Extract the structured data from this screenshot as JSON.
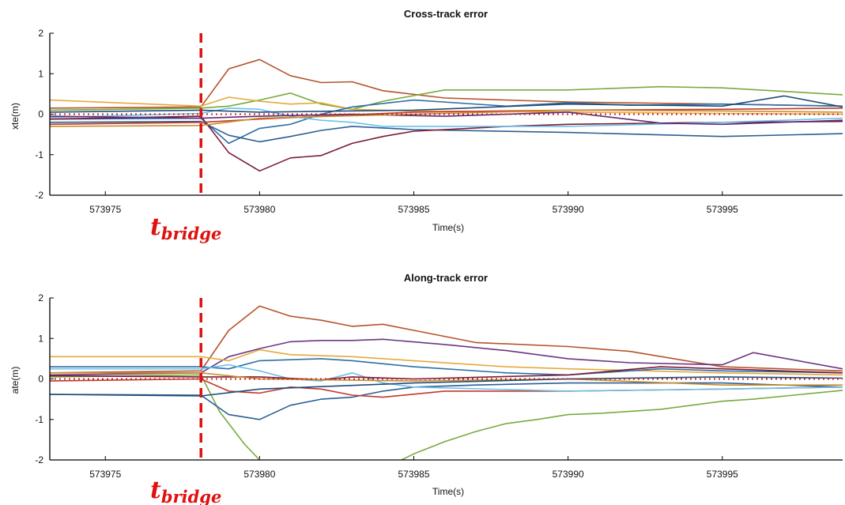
{
  "colors": {
    "marker": "#e01010",
    "reference": "#cc2222",
    "axis": "#000000"
  },
  "chart_data": [
    {
      "type": "line",
      "title": "Cross-track error",
      "xlabel": "Time(s)",
      "ylabel": "xte(m)",
      "xlim": [
        573973.2,
        573998.9
      ],
      "ylim": [
        -2,
        2
      ],
      "xticks": [
        573975,
        573980,
        573985,
        573990,
        573995
      ],
      "yticks": [
        -2,
        -1,
        0,
        1,
        2
      ],
      "grid": false,
      "legend": "none",
      "reference_line": {
        "y": 0,
        "style": "dotted"
      },
      "marker": {
        "x": 573978.1,
        "label_main": "t",
        "label_sub": "bridge",
        "style": "dashed"
      },
      "series": [
        {
          "color": "#b5532a",
          "x": [
            573973.2,
            573978.1,
            573979,
            573980,
            573981,
            573982,
            573983,
            573984,
            573986,
            573990,
            573995,
            573998.9
          ],
          "y": [
            0.15,
            0.18,
            1.12,
            1.35,
            0.95,
            0.78,
            0.8,
            0.58,
            0.4,
            0.3,
            0.25,
            0.2
          ]
        },
        {
          "color": "#77ab3e",
          "x": [
            573973.2,
            573978.1,
            573979,
            573980,
            573981,
            573982,
            573983,
            573984,
            573986,
            573990,
            573993,
            573995,
            573998.9
          ],
          "y": [
            0.1,
            0.15,
            0.2,
            0.35,
            0.52,
            0.25,
            0.12,
            0.32,
            0.6,
            0.6,
            0.68,
            0.65,
            0.48
          ]
        },
        {
          "color": "#e6a93c",
          "x": [
            573973.2,
            573978.1,
            573979,
            573980,
            573981,
            573982,
            573983,
            573985,
            573990,
            573995,
            573998.9
          ],
          "y": [
            0.35,
            0.2,
            0.42,
            0.32,
            0.25,
            0.28,
            0.12,
            0.08,
            0.05,
            0.02,
            0.0
          ]
        },
        {
          "color": "#2d6fa6",
          "x": [
            573973.2,
            573978.1,
            573979,
            573980,
            573981,
            573982,
            573983,
            573985,
            573988,
            573990,
            573992,
            573995,
            573998.9
          ],
          "y": [
            -0.12,
            -0.1,
            -0.72,
            -0.35,
            -0.25,
            0.0,
            0.18,
            0.35,
            0.2,
            0.28,
            0.22,
            0.25,
            0.2
          ]
        },
        {
          "color": "#2a5f94",
          "x": [
            573973.2,
            573978.1,
            573979,
            573980,
            573981,
            573982,
            573983,
            573985,
            573990,
            573995,
            573998.9
          ],
          "y": [
            -0.2,
            -0.18,
            -0.52,
            -0.68,
            -0.55,
            -0.4,
            -0.3,
            -0.38,
            -0.45,
            -0.55,
            -0.48
          ]
        },
        {
          "color": "#7a1c33",
          "x": [
            573973.2,
            573978.1,
            573979,
            573980,
            573981,
            573982,
            573983,
            573984,
            573985,
            573988,
            573990,
            573995,
            573998.9
          ],
          "y": [
            -0.12,
            -0.05,
            -0.95,
            -1.4,
            -1.08,
            -1.02,
            -0.72,
            -0.55,
            -0.42,
            -0.3,
            -0.25,
            -0.2,
            -0.18
          ]
        },
        {
          "color": "#6ec0e8",
          "x": [
            573973.2,
            573978.1,
            573979,
            573980,
            573981,
            573982,
            573983,
            573984,
            573990,
            573995,
            573998.9
          ],
          "y": [
            -0.08,
            0.02,
            0.15,
            0.12,
            -0.05,
            -0.15,
            -0.2,
            -0.3,
            -0.3,
            -0.2,
            -0.1
          ]
        },
        {
          "color": "#c0392b",
          "x": [
            573973.2,
            573978.1,
            573980,
            573982,
            573985,
            573990,
            573995,
            573998.9
          ],
          "y": [
            -0.25,
            -0.2,
            -0.12,
            -0.05,
            0.05,
            0.1,
            0.12,
            0.15
          ]
        },
        {
          "color": "#5c2a7a",
          "x": [
            573973.2,
            573978.1,
            573980,
            573983,
            573986,
            573990,
            573993,
            573995,
            573998.9
          ],
          "y": [
            -0.05,
            -0.1,
            -0.05,
            0.0,
            -0.05,
            0.05,
            -0.22,
            -0.25,
            -0.15
          ]
        },
        {
          "color": "#c98e2e",
          "x": [
            573973.2,
            573978.1,
            573980,
            573985,
            573990,
            573995,
            573998.9
          ],
          "y": [
            -0.3,
            -0.28,
            -0.1,
            0.0,
            0.1,
            0.08,
            0.05
          ]
        },
        {
          "color": "#1e4d78",
          "x": [
            573973.2,
            573978.1,
            573980,
            573985,
            573990,
            573995,
            573997,
            573998.9
          ],
          "y": [
            0.05,
            0.1,
            0.05,
            0.1,
            0.25,
            0.2,
            0.45,
            0.18
          ]
        }
      ]
    },
    {
      "type": "line",
      "title": "Along-track error",
      "xlabel": "Time(s)",
      "ylabel": "ate(m)",
      "xlim": [
        573973.2,
        573998.9
      ],
      "ylim": [
        -2,
        2
      ],
      "xticks": [
        573975,
        573980,
        573985,
        573990,
        573995
      ],
      "yticks": [
        -2,
        -1,
        0,
        1,
        2
      ],
      "grid": false,
      "legend": "none",
      "reference_line": {
        "y": 0,
        "style": "dotted"
      },
      "marker": {
        "x": 573978.1,
        "label_main": "t",
        "label_sub": "bridge",
        "style": "dashed"
      },
      "series": [
        {
          "color": "#b5532a",
          "x": [
            573973.2,
            573978.1,
            573979,
            573980,
            573981,
            573982,
            573983,
            573984,
            573985,
            573987,
            573990,
            573992,
            573995,
            573998.9
          ],
          "y": [
            0.15,
            0.2,
            1.2,
            1.8,
            1.55,
            1.45,
            1.3,
            1.35,
            1.2,
            0.9,
            0.8,
            0.68,
            0.3,
            0.2
          ]
        },
        {
          "color": "#6b3585",
          "x": [
            573973.2,
            573978.1,
            573979,
            573980,
            573981,
            573982,
            573983,
            573984,
            573986,
            573988,
            573990,
            573992,
            573995,
            573996,
            573998.9
          ],
          "y": [
            0.1,
            0.15,
            0.55,
            0.75,
            0.92,
            0.95,
            0.95,
            0.98,
            0.85,
            0.7,
            0.5,
            0.4,
            0.35,
            0.65,
            0.25
          ]
        },
        {
          "color": "#e6a93c",
          "x": [
            573973.2,
            573978.1,
            573979,
            573980,
            573981,
            573983,
            573985,
            573988,
            573990,
            573995,
            573998.9
          ],
          "y": [
            0.55,
            0.55,
            0.45,
            0.72,
            0.6,
            0.55,
            0.45,
            0.3,
            0.25,
            0.15,
            0.1
          ]
        },
        {
          "color": "#2d6fa6",
          "x": [
            573973.2,
            573978.1,
            573979,
            573980,
            573982,
            573983,
            573985,
            573988,
            573990,
            573993,
            573995,
            573998.9
          ],
          "y": [
            0.3,
            0.3,
            0.25,
            0.45,
            0.5,
            0.45,
            0.3,
            0.15,
            0.1,
            0.25,
            0.2,
            0.15
          ]
        },
        {
          "color": "#77ab3e",
          "x": [
            573973.2,
            573978.1,
            573978.7,
            573979.5,
            573980
          ],
          "y": [
            0.05,
            0.1,
            -0.8,
            -1.6,
            -2.0
          ]
        },
        {
          "color": "#77ab3e",
          "x": [
            573984.6,
            573985,
            573986,
            573987,
            573988,
            573989,
            573990,
            573991,
            573993,
            573995,
            573996,
            573998.9
          ],
          "y": [
            -2.0,
            -1.85,
            -1.55,
            -1.3,
            -1.1,
            -1.0,
            -0.88,
            -0.85,
            -0.75,
            -0.55,
            -0.5,
            -0.28
          ]
        },
        {
          "color": "#2a5f94",
          "x": [
            573973.2,
            573978.1,
            573979,
            573980,
            573981,
            573982,
            573983,
            573984,
            573985,
            573987,
            573990,
            573995,
            573998.9
          ],
          "y": [
            -0.38,
            -0.4,
            -0.88,
            -1.0,
            -0.65,
            -0.5,
            -0.45,
            -0.3,
            -0.2,
            -0.15,
            -0.1,
            -0.1,
            -0.2
          ]
        },
        {
          "color": "#c0392b",
          "x": [
            573973.2,
            573978.1,
            573979,
            573980,
            573981,
            573982,
            573983,
            573984,
            573986,
            573990,
            573995,
            573998.9
          ],
          "y": [
            -0.05,
            0.0,
            -0.3,
            -0.35,
            -0.2,
            -0.25,
            -0.4,
            -0.45,
            -0.3,
            -0.3,
            -0.25,
            -0.2
          ]
        },
        {
          "color": "#6ec0e8",
          "x": [
            573973.2,
            573978.1,
            573979,
            573980,
            573981,
            573982,
            573983,
            573984,
            573985,
            573990,
            573995,
            573998.9
          ],
          "y": [
            0.25,
            0.25,
            0.35,
            0.2,
            0.0,
            -0.05,
            0.15,
            -0.1,
            -0.2,
            -0.3,
            -0.25,
            -0.2
          ]
        },
        {
          "color": "#7a1c33",
          "x": [
            573973.2,
            573978.1,
            573980,
            573982,
            573983,
            573985,
            573990,
            573993,
            573995,
            573998.9
          ],
          "y": [
            0.08,
            0.05,
            0.05,
            -0.02,
            0.05,
            0.0,
            0.1,
            0.3,
            0.25,
            0.15
          ]
        },
        {
          "color": "#c98e2e",
          "x": [
            573973.2,
            573978.1,
            573980,
            573985,
            573990,
            573995,
            573998.9
          ],
          "y": [
            0.15,
            0.15,
            0.0,
            -0.05,
            0.0,
            -0.15,
            -0.15
          ]
        },
        {
          "color": "#1e4d78",
          "x": [
            573973.2,
            573978.1,
            573980,
            573985,
            573990,
            573995,
            573998.9
          ],
          "y": [
            -0.38,
            -0.42,
            -0.25,
            -0.1,
            0.0,
            0.05,
            0.02
          ]
        }
      ]
    }
  ]
}
